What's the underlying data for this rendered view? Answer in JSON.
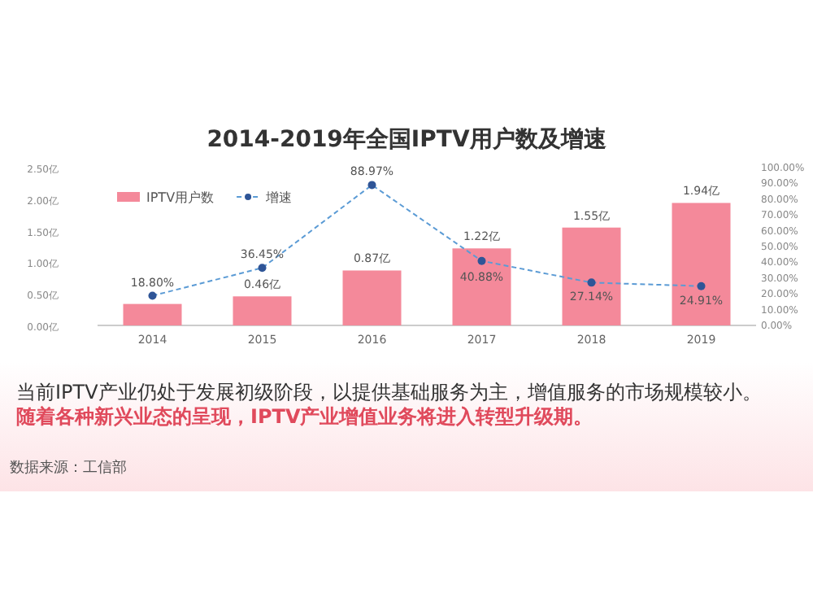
{
  "chart_data": {
    "type": "bar",
    "title": "2014-2019年全国IPTV用户数及增速",
    "categories": [
      "2014",
      "2015",
      "2016",
      "2017",
      "2018",
      "2019"
    ],
    "series": [
      {
        "name": "IPTV用户数",
        "color": "#f4899a",
        "values": [
          0.34,
          0.46,
          0.87,
          1.22,
          1.55,
          1.94
        ],
        "value_labels": [
          null,
          "0.46亿",
          "0.87亿",
          "1.22亿",
          "1.55亿",
          "1.94亿"
        ]
      },
      {
        "name": "增速",
        "type": "line",
        "axis": "y2",
        "color": "#5b9bd5",
        "marker": "circle",
        "line_style": "dashed",
        "values": [
          18.8,
          36.45,
          88.97,
          40.88,
          27.14,
          24.91
        ],
        "value_labels": [
          "18.80%",
          "36.45%",
          "88.97%",
          "40.88%",
          "27.14%",
          "24.91%"
        ]
      }
    ],
    "ylim": [
      0,
      2.5
    ],
    "yticks": [
      {
        "value": 0,
        "label": "0.00亿"
      },
      {
        "value": 0.5,
        "label": "0.50亿"
      },
      {
        "value": 1,
        "label": "1.00亿"
      },
      {
        "value": 1.5,
        "label": "1.50亿"
      },
      {
        "value": 2,
        "label": "2.00亿"
      },
      {
        "value": 2.5,
        "label": "2.50亿"
      }
    ],
    "y2lim": [
      0,
      100
    ],
    "y2ticks": [
      {
        "value": 0,
        "label": "0.00%"
      },
      {
        "value": 10,
        "label": "10.00%"
      },
      {
        "value": 20,
        "label": "20.00%"
      },
      {
        "value": 30,
        "label": "30.00%"
      },
      {
        "value": 40,
        "label": "40.00%"
      },
      {
        "value": 50,
        "label": "50.00%"
      },
      {
        "value": 60,
        "label": "60.00%"
      },
      {
        "value": 70,
        "label": "70.00%"
      },
      {
        "value": 80,
        "label": "80.00%"
      },
      {
        "value": 90,
        "label": "90.00%"
      },
      {
        "value": 100,
        "label": "100.00%"
      }
    ],
    "legend": "top left",
    "annotations": [
      "当前IPTV产业仍处于发展初级阶段，以提供基础服务为主，增值服务的市场规模较小。",
      "随着各种新兴业态的呈现，IPTV产业增值业务将进入转型升级期。",
      "数据来源：工信部"
    ]
  }
}
